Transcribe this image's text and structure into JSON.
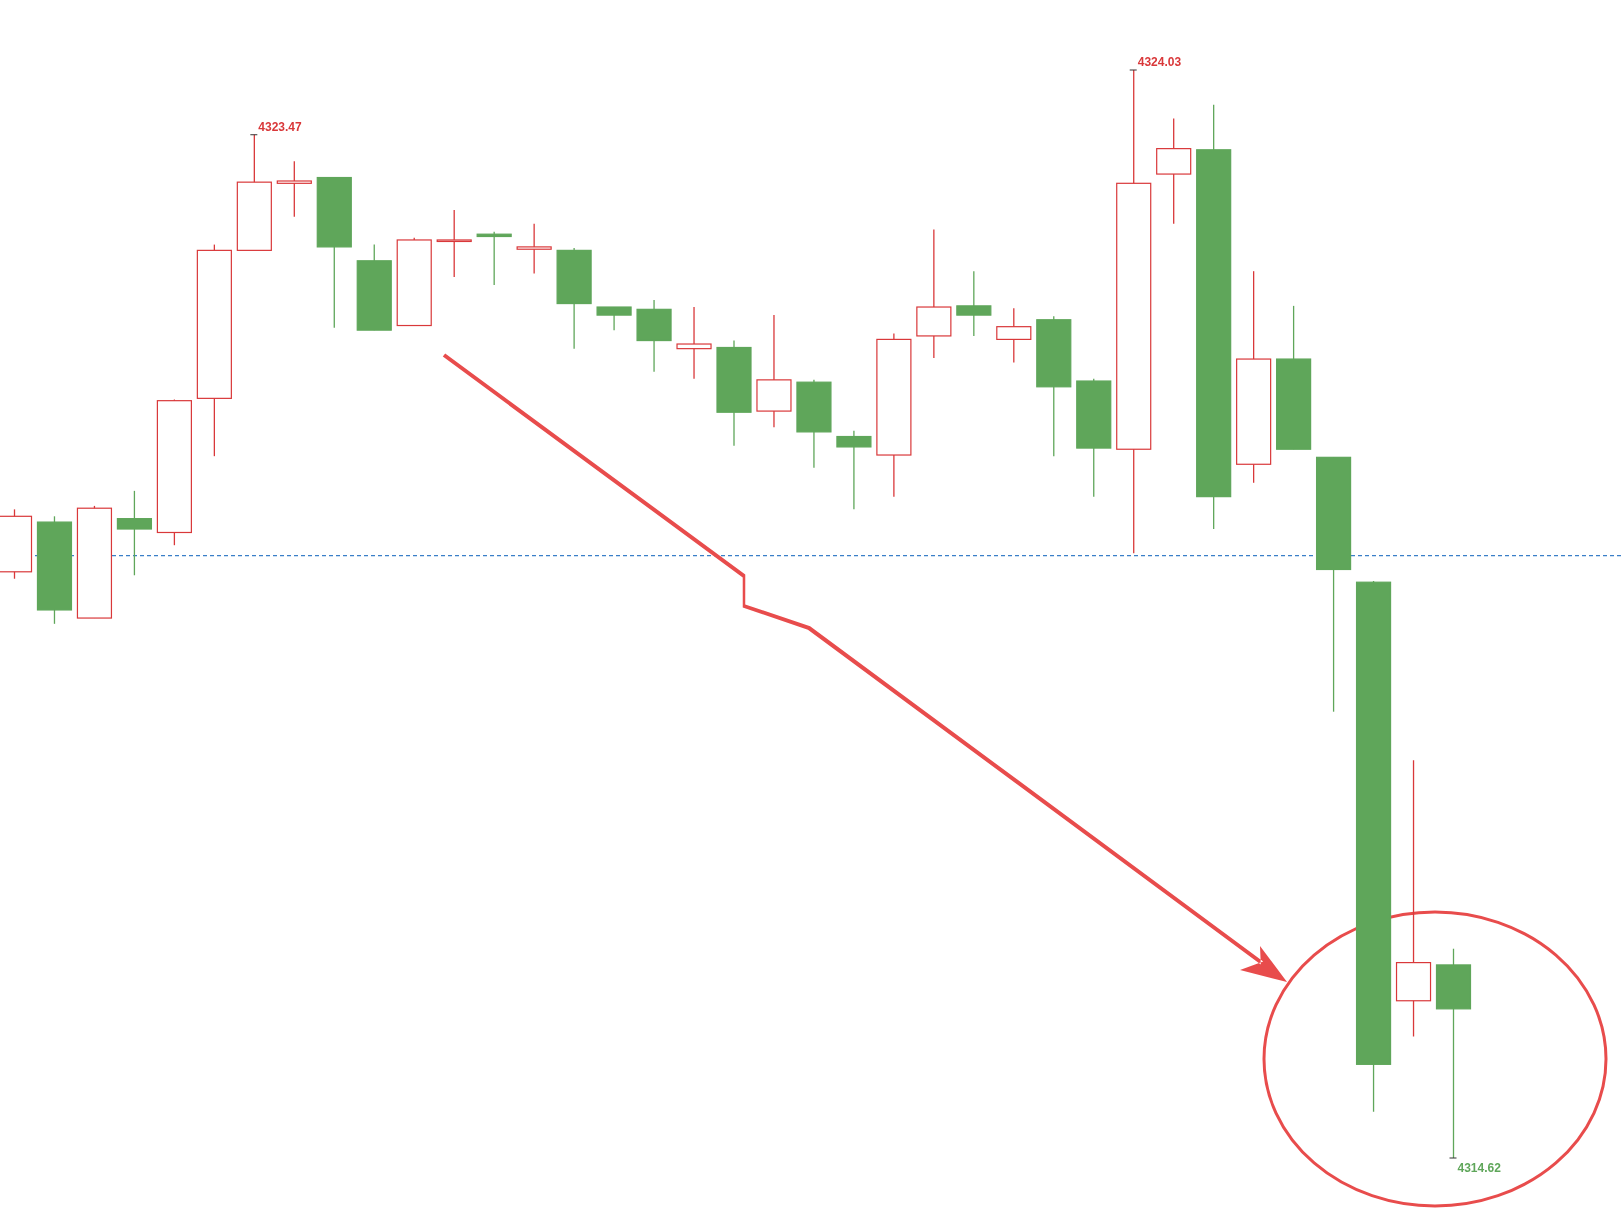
{
  "chart_data": {
    "type": "candlestick",
    "categories": [
      null,
      null,
      null,
      null,
      null,
      null,
      null,
      null,
      null,
      null,
      null,
      null,
      null,
      null,
      null,
      null,
      null,
      null,
      null,
      null,
      null,
      null,
      null,
      null,
      null,
      null,
      null,
      null,
      null,
      null,
      null,
      null,
      null,
      null,
      null,
      null,
      null
    ],
    "ohlc": [
      [
        4319.69,
        4320.23,
        4319.63,
        4320.17
      ],
      [
        4320.12,
        4320.17,
        4319.24,
        4319.36
      ],
      [
        4319.29,
        4320.26,
        4319.29,
        4320.24
      ],
      [
        4320.15,
        4320.39,
        4319.66,
        4320.06
      ],
      [
        4320.03,
        4321.18,
        4319.92,
        4321.17
      ],
      [
        4321.19,
        4322.52,
        4320.69,
        4322.47
      ],
      [
        4322.47,
        4323.47,
        4322.47,
        4323.06
      ],
      [
        4323.05,
        4323.24,
        4322.76,
        4323.07
      ],
      [
        4323.1,
        4323.1,
        4321.8,
        4322.5
      ],
      [
        4322.38,
        4322.52,
        4321.78,
        4321.78
      ],
      [
        4321.82,
        4322.58,
        4321.82,
        4322.56
      ],
      [
        4322.55,
        4322.82,
        4322.24,
        4322.56
      ],
      [
        4322.61,
        4322.63,
        4322.17,
        4322.59
      ],
      [
        4322.48,
        4322.7,
        4322.27,
        4322.5
      ],
      [
        4322.47,
        4322.49,
        4321.62,
        4322.01
      ],
      [
        4321.98,
        4321.98,
        4321.78,
        4321.91
      ],
      [
        4321.96,
        4322.04,
        4321.42,
        4321.69
      ],
      [
        4321.62,
        4321.98,
        4321.36,
        4321.66
      ],
      [
        4321.63,
        4321.69,
        4320.78,
        4321.07
      ],
      [
        4321.08,
        4321.91,
        4320.94,
        4321.35
      ],
      [
        4321.33,
        4321.35,
        4320.59,
        4320.9
      ],
      [
        4320.86,
        4320.91,
        4320.23,
        4320.77
      ],
      [
        4320.7,
        4321.75,
        4320.34,
        4321.7
      ],
      [
        4321.73,
        4322.65,
        4321.54,
        4321.98
      ],
      [
        4321.99,
        4322.29,
        4321.73,
        4321.91
      ],
      [
        4321.7,
        4321.97,
        4321.5,
        4321.81
      ],
      [
        4321.87,
        4321.9,
        4320.69,
        4321.29
      ],
      [
        4321.34,
        4321.36,
        4320.34,
        4320.76
      ],
      [
        4320.75,
        4324.03,
        4319.85,
        4323.05
      ],
      [
        4323.13,
        4323.61,
        4322.7,
        4323.35
      ],
      [
        4323.34,
        4323.73,
        4320.06,
        4320.34
      ],
      [
        4320.62,
        4322.29,
        4320.46,
        4321.53
      ],
      [
        4321.53,
        4321.99,
        4320.75,
        4320.75
      ],
      [
        4320.68,
        4320.68,
        4318.48,
        4319.71
      ],
      [
        4319.6,
        4319.61,
        4315.02,
        4315.43
      ],
      [
        4315.98,
        4318.06,
        4315.67,
        4316.31
      ],
      [
        4316.29,
        4316.43,
        4314.62,
        4315.91
      ]
    ],
    "colors": [
      "#d9383a",
      "#5fa65a",
      "#d9383a",
      "#5fa65a",
      "#d9383a",
      "#d9383a",
      "#d9383a",
      "#d9383a",
      "#5fa65a",
      "#5fa65a",
      "#d9383a",
      "#d9383a",
      "#5fa65a",
      "#d9383a",
      "#5fa65a",
      "#5fa65a",
      "#5fa65a",
      "#d9383a",
      "#5fa65a",
      "#d9383a",
      "#5fa65a",
      "#5fa65a",
      "#d9383a",
      "#d9383a",
      "#5fa65a",
      "#d9383a",
      "#5fa65a",
      "#5fa65a",
      "#d9383a",
      "#d9383a",
      "#5fa65a",
      "#d9383a",
      "#5fa65a",
      "#5fa65a",
      "#5fa65a",
      "#d9383a",
      "#5fa65a"
    ],
    "ref_lines": [
      {
        "axis": "y",
        "value": 4319.83,
        "color": "#3a7fc8",
        "line_style": "dashed"
      }
    ],
    "annotations": [
      "4323.47",
      "4324.03",
      "4314.62"
    ]
  }
}
